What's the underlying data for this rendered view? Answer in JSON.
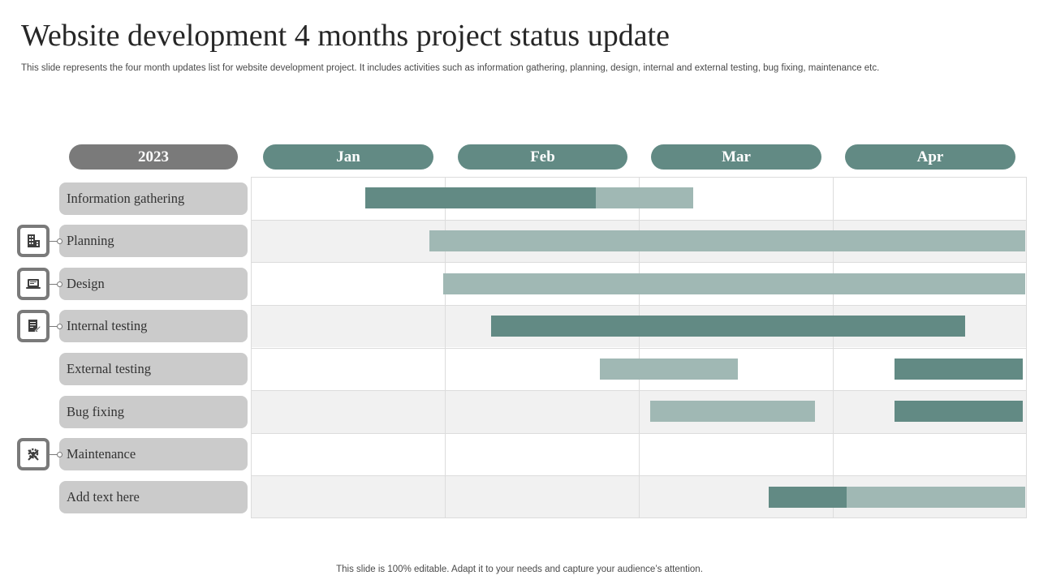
{
  "header": {
    "title": "Website development 4 months project status update",
    "subtitle": "This slide represents the four month updates list for website development project. It includes activities such as information gathering, planning, design, internal and external testing, bug fixing, maintenance etc."
  },
  "timeline": {
    "year": "2023",
    "months": [
      "Jan",
      "Feb",
      "Mar",
      "Apr"
    ]
  },
  "tasks": [
    {
      "label": "Information gathering",
      "icon": ""
    },
    {
      "label": "Planning",
      "icon": "building-icon"
    },
    {
      "label": "Design",
      "icon": "laptop-icon"
    },
    {
      "label": "Internal testing",
      "icon": "document-pen-icon"
    },
    {
      "label": "External testing",
      "icon": ""
    },
    {
      "label": "Bug fixing",
      "icon": ""
    },
    {
      "label": "Maintenance",
      "icon": "gear-tools-icon"
    },
    {
      "label": "Add text here",
      "icon": ""
    }
  ],
  "chart_data": {
    "type": "gantt",
    "x_unit": "months (0 = start of Jan, 4 = end of Apr)",
    "xlim": [
      0,
      4
    ],
    "categories": [
      "Information gathering",
      "Planning",
      "Design",
      "Internal testing",
      "External testing",
      "Bug fixing",
      "Maintenance",
      "Add text here"
    ],
    "bars": [
      {
        "task": "Information gathering",
        "start": 0.59,
        "end": 1.78,
        "shade": "dark"
      },
      {
        "task": "Information gathering",
        "start": 1.78,
        "end": 2.28,
        "shade": "light"
      },
      {
        "task": "Planning",
        "start": 0.92,
        "end": 3.99,
        "shade": "light"
      },
      {
        "task": "Design",
        "start": 0.99,
        "end": 3.99,
        "shade": "light"
      },
      {
        "task": "Internal testing",
        "start": 1.24,
        "end": 3.68,
        "shade": "dark"
      },
      {
        "task": "External testing",
        "start": 1.8,
        "end": 2.51,
        "shade": "light"
      },
      {
        "task": "External testing",
        "start": 3.32,
        "end": 3.98,
        "shade": "dark"
      },
      {
        "task": "Bug fixing",
        "start": 2.06,
        "end": 2.91,
        "shade": "light"
      },
      {
        "task": "Bug fixing",
        "start": 3.32,
        "end": 3.98,
        "shade": "dark"
      },
      {
        "task": "Add text here",
        "start": 2.67,
        "end": 3.07,
        "shade": "dark"
      },
      {
        "task": "Add text here",
        "start": 3.07,
        "end": 3.99,
        "shade": "light"
      }
    ],
    "colors": {
      "dark": "#628a84",
      "light": "#a0b8b4",
      "year_pill": "#7a7a7a",
      "label_bg": "#cbcbcb"
    }
  },
  "footer": {
    "text": "This slide is 100% editable. Adapt it to your needs and capture your audience’s attention."
  }
}
